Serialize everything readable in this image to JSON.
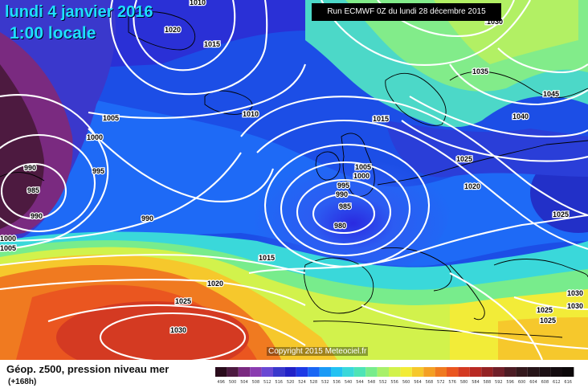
{
  "header": {
    "date": "lundi 4 janvier 2016",
    "time": "1:00 locale",
    "run": "Run ECMWF 0Z du lundi 28 décembre 2015"
  },
  "footer": {
    "title": "Géop. z500, pression niveau mer",
    "subtitle": "(+168h)",
    "copyright": "Copyright 2015 Meteociel.fr"
  },
  "isobar_labels": [
    "1020",
    "1015",
    "1010",
    "1005",
    "1000",
    "995",
    "990",
    "985",
    "990",
    "1000",
    "1005",
    "990",
    "1015",
    "1020",
    "1025",
    "1030",
    "1010",
    "1015",
    "1005",
    "1000",
    "995",
    "990",
    "985",
    "980",
    "1015",
    "1030",
    "1035",
    "1045",
    "1040",
    "1025",
    "1020",
    "1025",
    "1025",
    "1030",
    "1030",
    "1025"
  ],
  "legend": {
    "values": [
      "496",
      "500",
      "504",
      "508",
      "512",
      "516",
      "520",
      "524",
      "528",
      "532",
      "536",
      "540",
      "544",
      "548",
      "552",
      "556",
      "560",
      "564",
      "568",
      "572",
      "576",
      "580",
      "584",
      "588",
      "592",
      "596",
      "600",
      "604",
      "608",
      "612",
      "616"
    ],
    "colors": [
      "#2a0c1c",
      "#4d1a40",
      "#7a2a80",
      "#8a3cb0",
      "#6a48d4",
      "#3a38cc",
      "#2222c8",
      "#1e3ae6",
      "#1a66f4",
      "#1a9af6",
      "#22c2f2",
      "#3ad8da",
      "#4ee4b6",
      "#78ec8c",
      "#a8f06a",
      "#d2f24c",
      "#f2ec38",
      "#f6c82c",
      "#f4a024",
      "#f07a20",
      "#ea5620",
      "#d43a22",
      "#b82a24",
      "#942224",
      "#70202a",
      "#4c1c24",
      "#34181c",
      "#261418",
      "#1c1014",
      "#140c10",
      "#0c080a"
    ]
  }
}
